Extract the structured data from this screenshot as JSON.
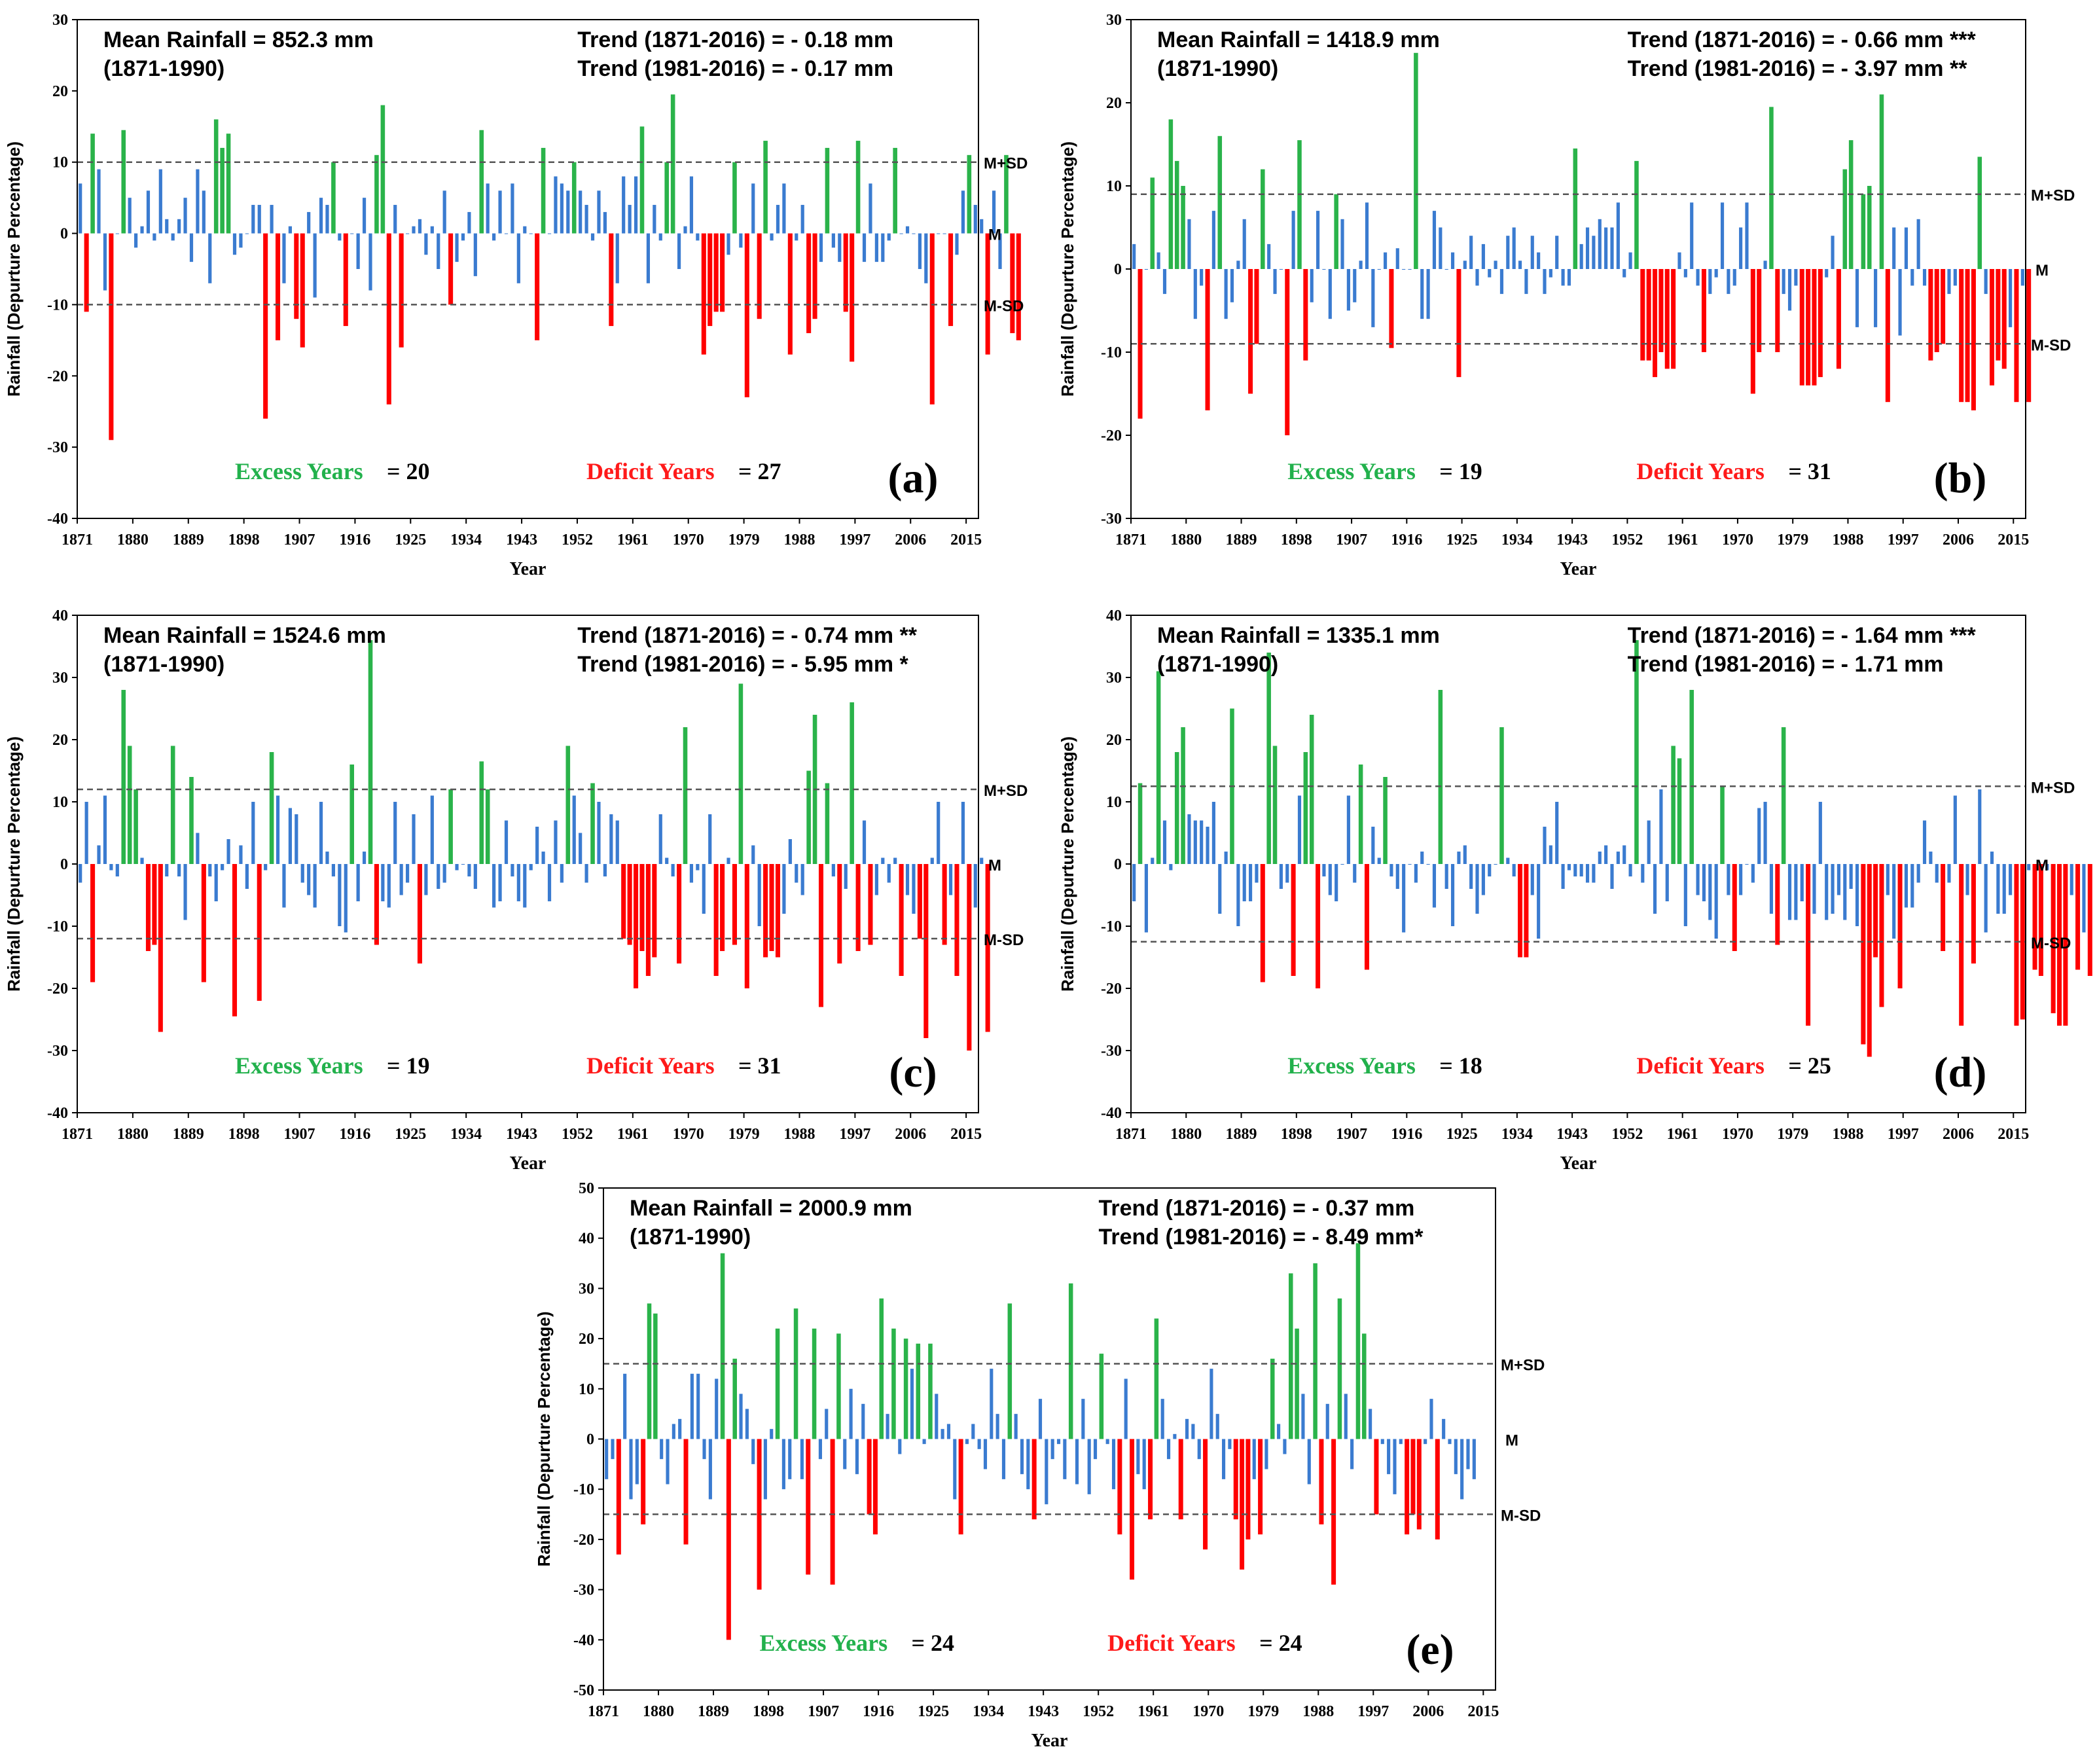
{
  "colors": {
    "excess": "#2ab34a",
    "deficit": "#ff0000",
    "normal": "#3a7bd0",
    "axis": "#000000"
  },
  "chart_data": [
    {
      "type": "bar",
      "panel": "(a)",
      "ylabel": "Rainfall (Depurture Percentage)",
      "xlabel": "Year",
      "ylim": [
        -40,
        30
      ],
      "yticks": [
        -40,
        -30,
        -20,
        -10,
        0,
        10,
        20,
        30
      ],
      "xticks": [
        "1871",
        "1880",
        "1889",
        "1898",
        "1907",
        "1916",
        "1925",
        "1934",
        "1943",
        "1952",
        "1961",
        "1970",
        "1979",
        "1988",
        "1997",
        "2006",
        "2015"
      ],
      "mean_text": "Mean Rainfall = 852.3 mm",
      "mean_period": "(1871-1990)",
      "trend1": "Trend (1871-2016)  =  - 0.18 mm",
      "trend2": "Trend (1981-2016)  =  - 0.17 mm",
      "excess_label": "Excess Years",
      "excess_count": "= 20",
      "deficit_label": "Deficit Years",
      "deficit_count": "= 27",
      "upper": 10,
      "lower": -10,
      "upper_label": "M+SD",
      "mid_label": "M",
      "lower_label": "M-SD",
      "start_year": 1871,
      "values": [
        7,
        -11,
        14,
        9,
        -8,
        -29,
        0,
        14.5,
        5,
        -2,
        1,
        6,
        -1,
        9,
        2,
        -1,
        2,
        5,
        -4,
        9,
        6,
        -7,
        16,
        12,
        14,
        -3,
        -2,
        0,
        4,
        4,
        -26,
        4,
        -15,
        -7,
        1,
        -12,
        -16,
        3,
        -9,
        5,
        4,
        10,
        -1,
        -13,
        0,
        -5,
        5,
        -8,
        11,
        18,
        -24,
        4,
        -16,
        0,
        1,
        2,
        -3,
        1,
        -5,
        6,
        -10,
        -4,
        -1,
        3,
        -6,
        14.5,
        7,
        -1,
        6,
        0,
        7,
        -7,
        1,
        0,
        -15,
        12,
        0,
        8,
        7,
        6,
        10,
        6,
        4,
        -1,
        6,
        3,
        -13,
        -7,
        8,
        4,
        8,
        15,
        -7,
        4,
        -1,
        10,
        19.5,
        -5,
        1,
        8,
        -1,
        -17,
        -13,
        -11,
        -11,
        -3,
        10,
        -2,
        -23,
        7,
        -12,
        13,
        -1,
        4,
        7,
        -17,
        -1,
        4,
        -14,
        -12,
        -4,
        12,
        -2,
        -4,
        -11,
        -18,
        13,
        -4,
        7,
        -4,
        -4,
        -1,
        12,
        0,
        1,
        0,
        -5,
        -7,
        -24,
        0,
        0,
        -13,
        -3,
        6,
        11,
        4,
        2,
        -17,
        6,
        -5,
        11,
        -14,
        -15
      ]
    },
    {
      "type": "bar",
      "panel": "(b)",
      "ylabel": "Rainfall (Depurture Percentage)",
      "xlabel": "Year",
      "ylim": [
        -30,
        30
      ],
      "yticks": [
        -30,
        -20,
        -10,
        0,
        10,
        20,
        30
      ],
      "xticks": [
        "1871",
        "1880",
        "1889",
        "1898",
        "1907",
        "1916",
        "1925",
        "1934",
        "1943",
        "1952",
        "1961",
        "1970",
        "1979",
        "1988",
        "1997",
        "2006",
        "2015"
      ],
      "mean_text": "Mean Rainfall = 1418.9 mm",
      "mean_period": "(1871-1990)",
      "trend1": "Trend (1871-2016)  = - 0.66 mm ***",
      "trend2": "Trend (1981-2016)  = - 3.97 mm **",
      "excess_label": "Excess Years",
      "excess_count": "= 19",
      "deficit_label": "Deficit Years",
      "deficit_count": "= 31",
      "upper": 9,
      "lower": -9,
      "upper_label": "M+SD",
      "mid_label": "M",
      "lower_label": "M-SD",
      "start_year": 1871,
      "values": [
        3,
        -18,
        0,
        11,
        2,
        -3,
        18,
        13,
        10,
        6,
        -6,
        -2,
        -17,
        7,
        16,
        -6,
        -4,
        1,
        6,
        -15,
        -9,
        12,
        3,
        -3,
        0,
        -20,
        7,
        15.5,
        -11,
        -4,
        7,
        0,
        -6,
        9,
        6,
        -5,
        -4,
        1,
        8,
        -7,
        0,
        2,
        -9.5,
        2.5,
        0,
        0,
        26,
        -6,
        -6,
        7,
        5,
        0,
        2,
        -13,
        1,
        4,
        -2,
        3,
        -1,
        1,
        -3,
        4,
        5,
        1,
        -3,
        4,
        2,
        -3,
        -1,
        4,
        -2,
        -2,
        14.5,
        3,
        5,
        4,
        6,
        5,
        5,
        8,
        -1,
        2,
        13,
        -11,
        -11,
        -13,
        -10,
        -12,
        -12,
        2,
        -1,
        8,
        -2,
        -10,
        -3,
        -1,
        8,
        -3,
        -2,
        5,
        8,
        -15,
        -10,
        1,
        19.5,
        -10,
        -3,
        -5,
        -2,
        -14,
        -14,
        -14,
        -13,
        -1,
        4,
        -12,
        12,
        15.5,
        -7,
        9,
        10,
        -7,
        21,
        -16,
        5,
        -8,
        5,
        -2,
        6,
        -2,
        -11,
        -10,
        -9,
        -3,
        -2,
        -16,
        -16,
        -17,
        13.5,
        -3,
        -14,
        -11,
        -12,
        -7,
        -16,
        -2,
        -16
      ]
    },
    {
      "type": "bar",
      "panel": "(c)",
      "ylabel": "Rainfall (Depurture Percentage)",
      "xlabel": "Year",
      "ylim": [
        -40,
        40
      ],
      "yticks": [
        -40,
        -30,
        -20,
        -10,
        0,
        10,
        20,
        30,
        40
      ],
      "xticks": [
        "1871",
        "1880",
        "1889",
        "1898",
        "1907",
        "1916",
        "1925",
        "1934",
        "1943",
        "1952",
        "1961",
        "1970",
        "1979",
        "1988",
        "1997",
        "2006",
        "2015"
      ],
      "mean_text": "Mean Rainfall = 1524.6 mm",
      "mean_period": "(1871-1990)",
      "trend1": "Trend (1871-2016)  = - 0.74 mm **",
      "trend2": "Trend (1981-2016)  = - 5.95 mm *",
      "excess_label": "Excess Years",
      "excess_count": "= 19",
      "deficit_label": "Deficit Years",
      "deficit_count": "= 31",
      "upper": 12,
      "lower": -12,
      "upper_label": "M+SD",
      "mid_label": "M",
      "lower_label": "M-SD",
      "start_year": 1871,
      "values": [
        -3,
        10,
        -19,
        3,
        11,
        -1,
        -2,
        28,
        19,
        12,
        1,
        -14,
        -13,
        -27,
        -2,
        19,
        -2,
        -9,
        14,
        5,
        -19,
        -2,
        -6,
        -1,
        4,
        -24.5,
        3,
        -4,
        10,
        -22,
        -1,
        18,
        11,
        -7,
        9,
        8,
        -3,
        -5,
        -7,
        10,
        2,
        -2,
        -10,
        -11,
        16,
        -6,
        2,
        36,
        -13,
        -6,
        -7,
        10,
        -5,
        -3,
        8,
        -16,
        -5,
        11,
        -4,
        -3,
        12,
        -1,
        0,
        -2,
        -4,
        16.5,
        12,
        -7,
        -6,
        7,
        -2,
        -6,
        -7,
        -1,
        6,
        2,
        -6,
        7,
        -3,
        19,
        11,
        5,
        -3,
        13,
        10,
        -2,
        8,
        7,
        -12,
        -13,
        -20,
        -14,
        -18,
        -15,
        8,
        1,
        -2,
        -16,
        22,
        -3,
        -1,
        -8,
        8,
        -18,
        -14,
        1,
        -13,
        29,
        -20,
        3,
        -10,
        -15,
        -14,
        -15,
        -8,
        4,
        -3,
        -5,
        15,
        24,
        -23,
        13,
        -2,
        -16,
        -4,
        26,
        -14,
        7,
        -13,
        -5,
        1,
        -3,
        1,
        -18,
        -5,
        -8,
        -12,
        -28,
        1,
        10,
        -13,
        -5,
        -18,
        10,
        -30,
        -7,
        1,
        -27
      ]
    },
    {
      "type": "bar",
      "panel": "(d)",
      "ylabel": "Rainfall (Depurture Percentage)",
      "xlabel": "Year",
      "ylim": [
        -40,
        40
      ],
      "yticks": [
        -40,
        -30,
        -20,
        -10,
        0,
        10,
        20,
        30,
        40
      ],
      "xticks": [
        "1871",
        "1880",
        "1889",
        "1898",
        "1907",
        "1916",
        "1925",
        "1934",
        "1943",
        "1952",
        "1961",
        "1970",
        "1979",
        "1988",
        "1997",
        "2006",
        "2015"
      ],
      "mean_text": "Mean Rainfall = 1335.1 mm",
      "mean_period": "(1871-1990)",
      "trend1": "Trend (1871-2016)  = - 1.64 mm ***",
      "trend2": "Trend (1981-2016)  = - 1.71 mm",
      "excess_label": "Excess Years",
      "excess_count": "= 18",
      "deficit_label": "Deficit Years",
      "deficit_count": "= 25",
      "upper": 12.5,
      "lower": -12.5,
      "upper_label": "M+SD",
      "mid_label": "M",
      "lower_label": "M-SD",
      "start_year": 1871,
      "values": [
        -6,
        13,
        -11,
        1,
        31,
        7,
        -1,
        18,
        22,
        8,
        7,
        7,
        6,
        10,
        -8,
        2,
        25,
        -10,
        -6,
        -6,
        -3,
        -19,
        34,
        19,
        -4,
        -3,
        -18,
        11,
        18,
        24,
        -20,
        -2,
        -5,
        -6,
        0,
        11,
        -3,
        16,
        -17,
        6,
        1,
        14,
        -2,
        -4,
        -11,
        0,
        -3,
        2,
        0,
        -7,
        28,
        -4,
        -10,
        2,
        3,
        -4,
        -8,
        -5,
        -2,
        0,
        22,
        1,
        -2,
        -15,
        -15,
        -5,
        -12,
        6,
        3,
        10,
        -4,
        -1,
        -2,
        -2,
        -3,
        -3,
        2,
        3,
        -4,
        2,
        3,
        -2,
        36,
        -3,
        7,
        -8,
        12,
        -6,
        19,
        17,
        -10,
        28,
        -5,
        -6,
        -9,
        -12,
        12.5,
        -5,
        -14,
        -5,
        0,
        -3,
        9,
        10,
        -8,
        -13,
        22,
        -9,
        -9,
        -6,
        -26,
        -8,
        10,
        -9,
        -8,
        -5,
        -9,
        -4,
        -10,
        -29,
        -31,
        -15,
        -23,
        -5,
        -12,
        -20,
        -7,
        -7,
        -3,
        7,
        2,
        -3,
        -14,
        -3,
        11,
        -26,
        -5,
        -16,
        12,
        -11,
        2,
        -8,
        -8,
        -5,
        -26,
        -25,
        -1,
        -17,
        -18,
        -1,
        -24,
        -26,
        -26,
        -5,
        -17,
        -11,
        -18
      ]
    },
    {
      "type": "bar",
      "panel": "(e)",
      "ylabel": "Rainfall (Depurture Percentage)",
      "xlabel": "Year",
      "ylim": [
        -50,
        50
      ],
      "yticks": [
        -50,
        -40,
        -30,
        -20,
        -10,
        0,
        10,
        20,
        30,
        40,
        50
      ],
      "xticks": [
        "1871",
        "1880",
        "1889",
        "1898",
        "1907",
        "1916",
        "1925",
        "1934",
        "1943",
        "1952",
        "1961",
        "1970",
        "1979",
        "1988",
        "1997",
        "2006",
        "2015"
      ],
      "mean_text": "Mean Rainfall = 2000.9 mm",
      "mean_period": "(1871-1990)",
      "trend1": "Trend (1871-2016)  = - 0.37 mm",
      "trend2": "Trend (1981-2016)  = - 8.49 mm*",
      "excess_label": "Excess Years",
      "excess_count": "= 24",
      "deficit_label": "Deficit Years",
      "deficit_count": "= 24",
      "upper": 15,
      "lower": -15,
      "upper_label": "M+SD",
      "mid_label": "M",
      "lower_label": "M-SD",
      "start_year": 1871,
      "values": [
        -8,
        -4,
        -23,
        13,
        -12,
        -9,
        -17,
        27,
        25,
        -4,
        -9,
        3,
        4,
        -21,
        13,
        13,
        -4,
        -12,
        12,
        37,
        -40,
        16,
        9,
        6,
        -5,
        -30,
        -12,
        2,
        22,
        -10,
        -8,
        26,
        -8,
        -27,
        22,
        -4,
        6,
        -29,
        21,
        -6,
        10,
        -7,
        7,
        -15,
        -19,
        28,
        5,
        22,
        -3,
        20,
        14,
        19,
        -1,
        19,
        9,
        2,
        3,
        -12,
        -19,
        -1,
        3,
        -2,
        -6,
        14,
        5,
        -8,
        27,
        5,
        -7,
        -10,
        -16,
        8,
        -13,
        -4,
        -1,
        -8,
        31,
        -9,
        8,
        -11,
        -4,
        17,
        -1,
        -10,
        -19,
        12,
        -28,
        -7,
        -10,
        -16,
        24,
        8,
        -4,
        1,
        -16,
        4,
        3,
        -4,
        -22,
        14,
        5,
        -8,
        -2,
        -16,
        -26,
        -20,
        -8,
        -19,
        -6,
        16,
        3,
        -3,
        33,
        22,
        9,
        -9,
        35,
        -17,
        7,
        -29,
        28,
        9,
        -6,
        39,
        21,
        6,
        -15,
        -1,
        -7,
        -11,
        -1,
        -19,
        -15,
        -18,
        -1,
        8,
        -20,
        4,
        -1,
        -7,
        -12,
        -6,
        -8
      ]
    }
  ]
}
